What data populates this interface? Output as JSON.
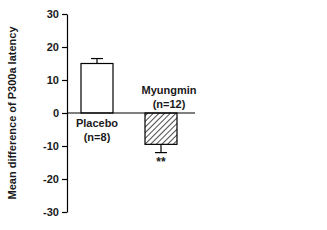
{
  "chart_data": {
    "type": "bar",
    "y_label": "Mean difference of P300a latency",
    "categories": [
      "Placebo\n(n=8)",
      "Myungmin\n(n=12)"
    ],
    "values": [
      15,
      -9.5
    ],
    "errors": [
      1.5,
      2.5
    ],
    "significance": [
      null,
      "**"
    ],
    "colors": [
      "#ffffff",
      "#000000"
    ],
    "ylim": [
      -30,
      30
    ],
    "yticks": [
      -30,
      -20,
      -10,
      0,
      10,
      20,
      30
    ],
    "grid": false
  }
}
